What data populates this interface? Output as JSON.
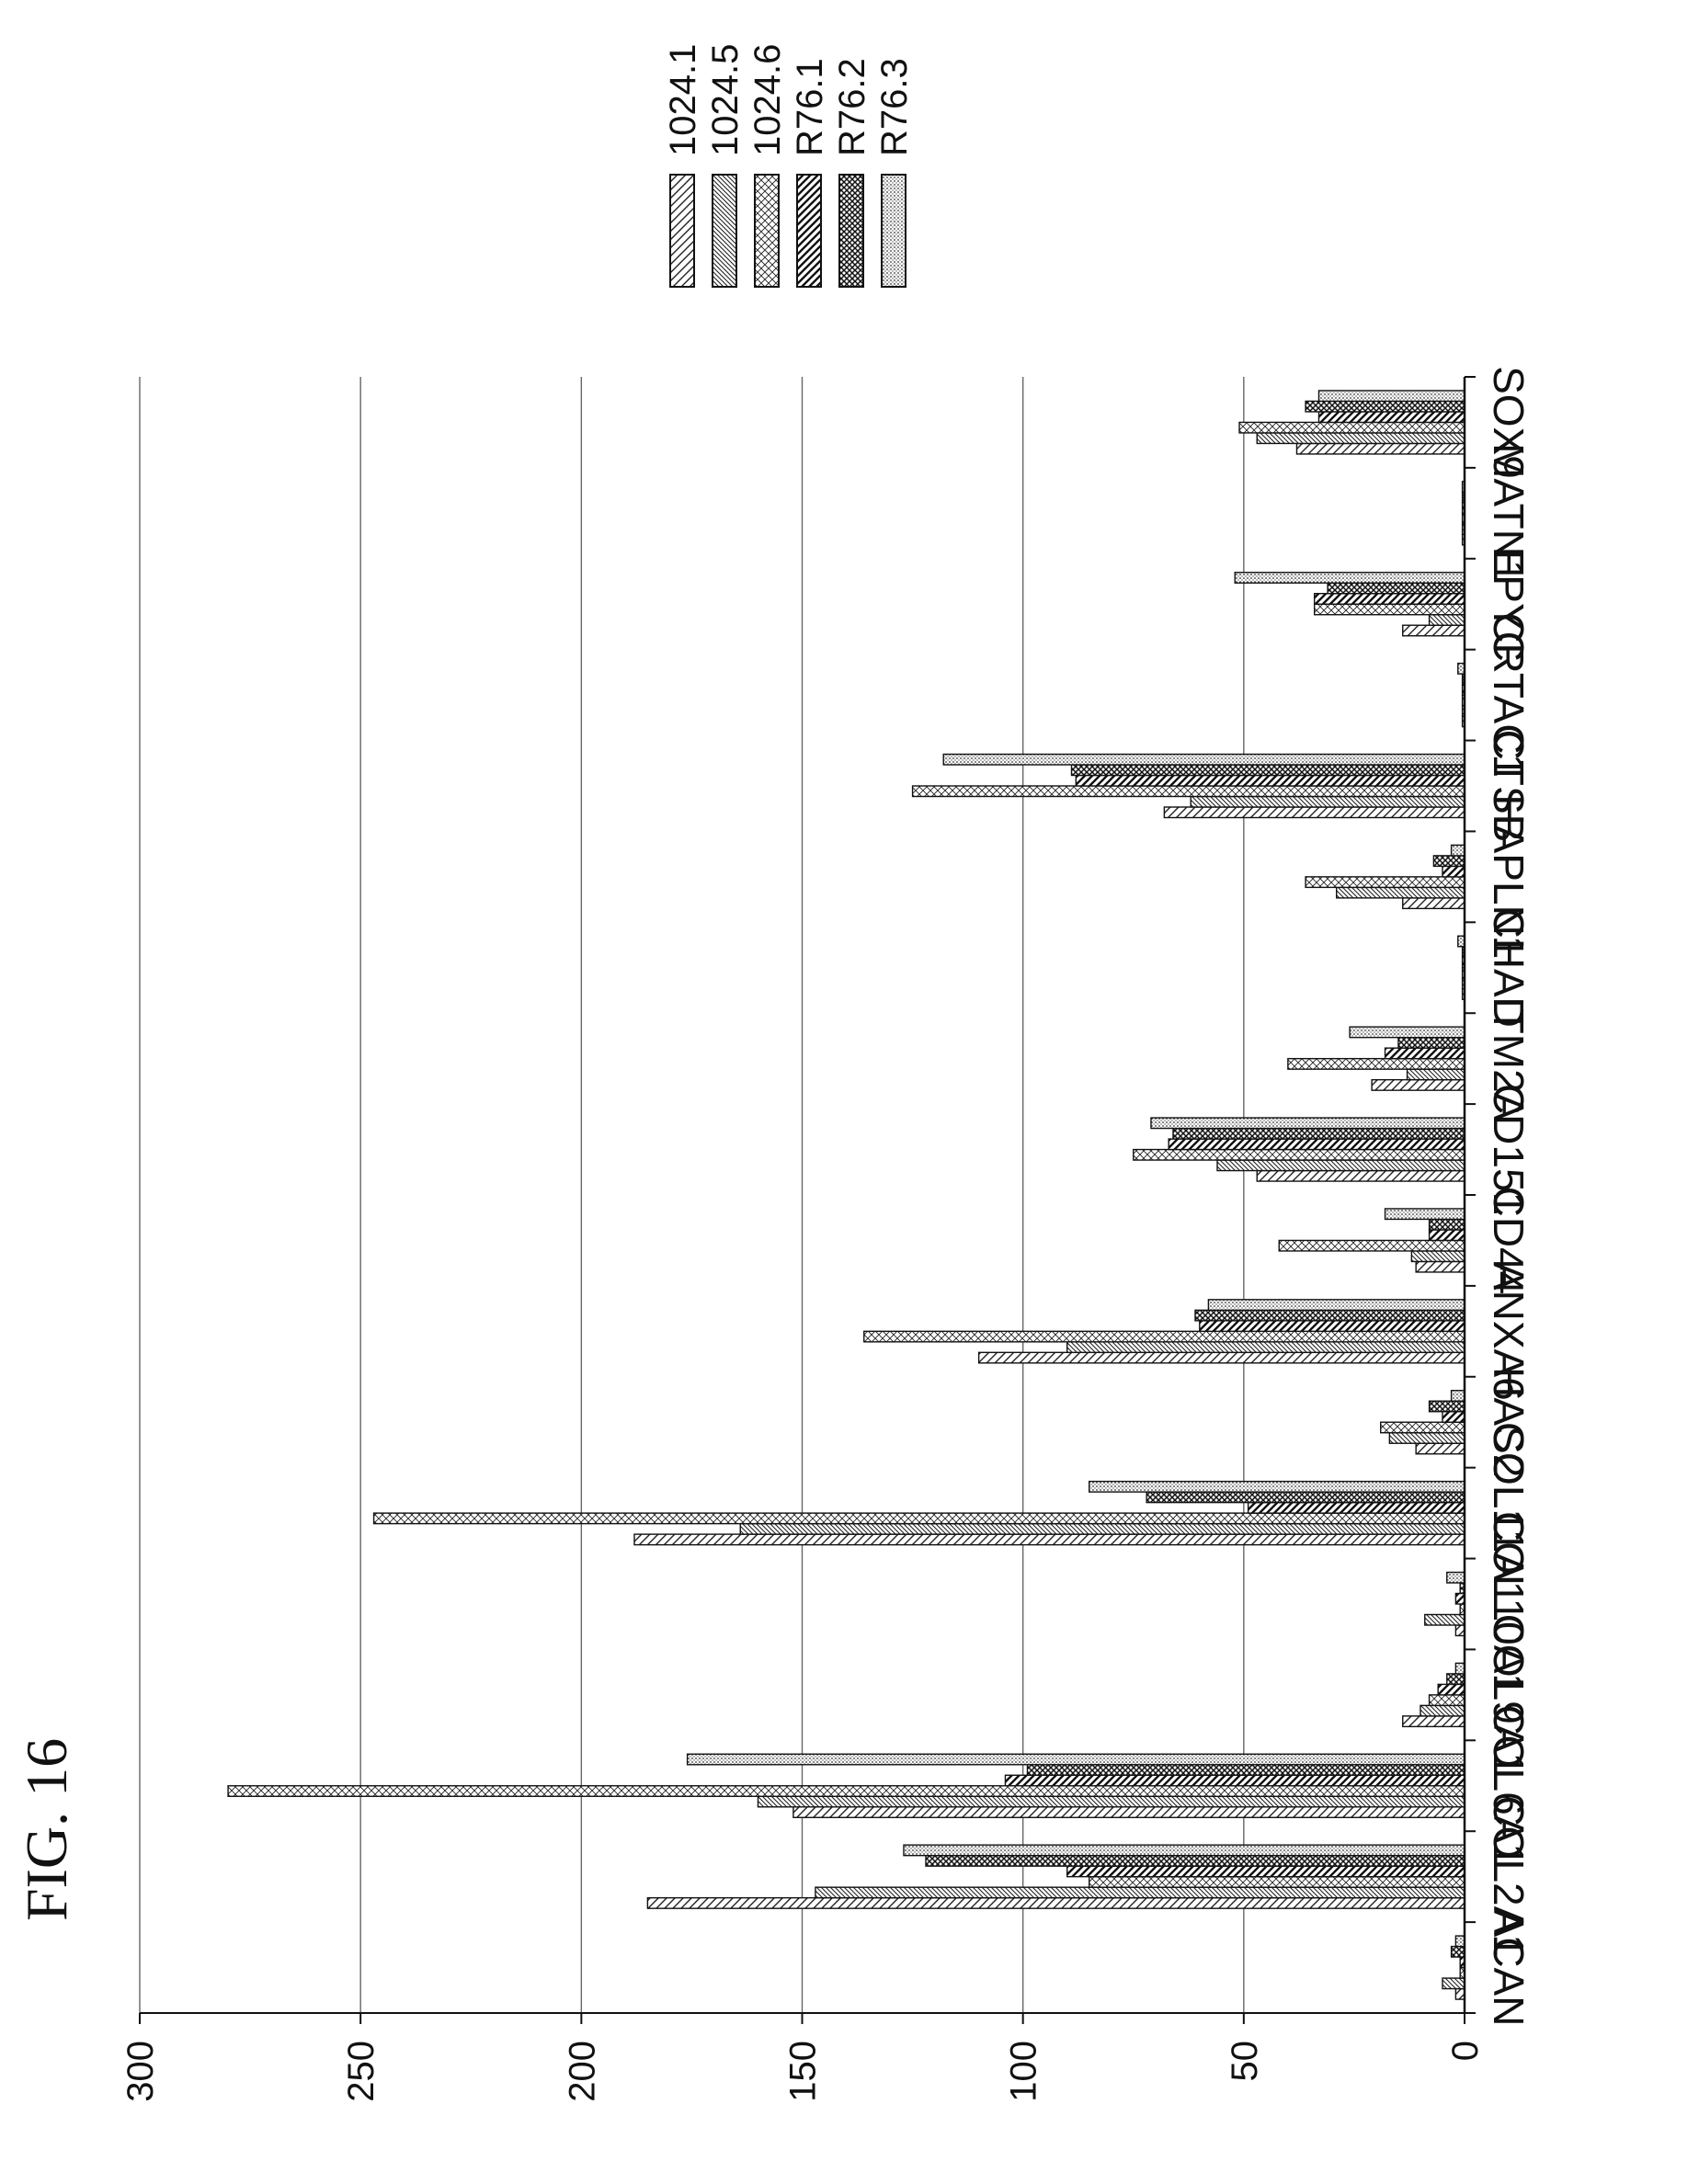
{
  "figure_label": "FIG. 16",
  "chart_data": {
    "type": "bar",
    "orientation": "rotated-90-clockwise",
    "title": "",
    "xlabel": "",
    "ylabel": "",
    "ylim": [
      0,
      300
    ],
    "yticks": [
      0,
      50,
      100,
      150,
      200,
      250,
      300
    ],
    "ytick_labels": [
      "0",
      "50",
      "100",
      "150",
      "200",
      "250",
      "300"
    ],
    "grid": true,
    "legend_position": "top-right",
    "categories": [
      "ACAN",
      "COL2A1",
      "COL6A1",
      "COL9A1",
      "COL10A1",
      "COL11A1",
      "HAS2",
      "ANXA6",
      "CD44",
      "CD151",
      "ITM2A",
      "CHAD",
      "HAPLN1",
      "CTSB",
      "CRTAC1",
      "EPYC",
      "MATN1",
      "SOX9"
    ],
    "series": [
      {
        "name": "1024.1",
        "pattern": "hatch-sparse",
        "values": [
          2,
          185,
          152,
          14,
          2,
          188,
          11,
          110,
          11,
          47,
          21,
          0.5,
          14,
          68,
          0.5,
          14,
          0.5,
          38
        ]
      },
      {
        "name": "1024.5",
        "pattern": "hatch-dense",
        "values": [
          5,
          147,
          160,
          10,
          9,
          164,
          17,
          90,
          12,
          56,
          13,
          0.5,
          29,
          62,
          0.5,
          8,
          0.5,
          47
        ]
      },
      {
        "name": "1024.6",
        "pattern": "hatch-cross-diagonal",
        "values": [
          1,
          85,
          280,
          8,
          1,
          247,
          19,
          136,
          42,
          75,
          40,
          0.5,
          36,
          125,
          0.5,
          34,
          0.5,
          51
        ]
      },
      {
        "name": "R76.1",
        "pattern": "hatch-thick",
        "values": [
          1,
          90,
          104,
          6,
          2,
          49,
          5,
          60,
          8,
          67,
          18,
          0.5,
          5,
          88,
          0.5,
          34,
          0.5,
          33
        ]
      },
      {
        "name": "R76.2",
        "pattern": "crosshatch",
        "values": [
          3,
          122,
          99,
          4,
          1,
          72,
          8,
          61,
          8,
          66,
          15,
          0.5,
          7,
          89,
          0.5,
          31,
          0.5,
          36
        ]
      },
      {
        "name": "R76.3",
        "pattern": "dots",
        "values": [
          2,
          127,
          176,
          2,
          4,
          85,
          3,
          58,
          18,
          71,
          26,
          1.5,
          3,
          118,
          1.5,
          52,
          0.5,
          33
        ]
      }
    ]
  }
}
